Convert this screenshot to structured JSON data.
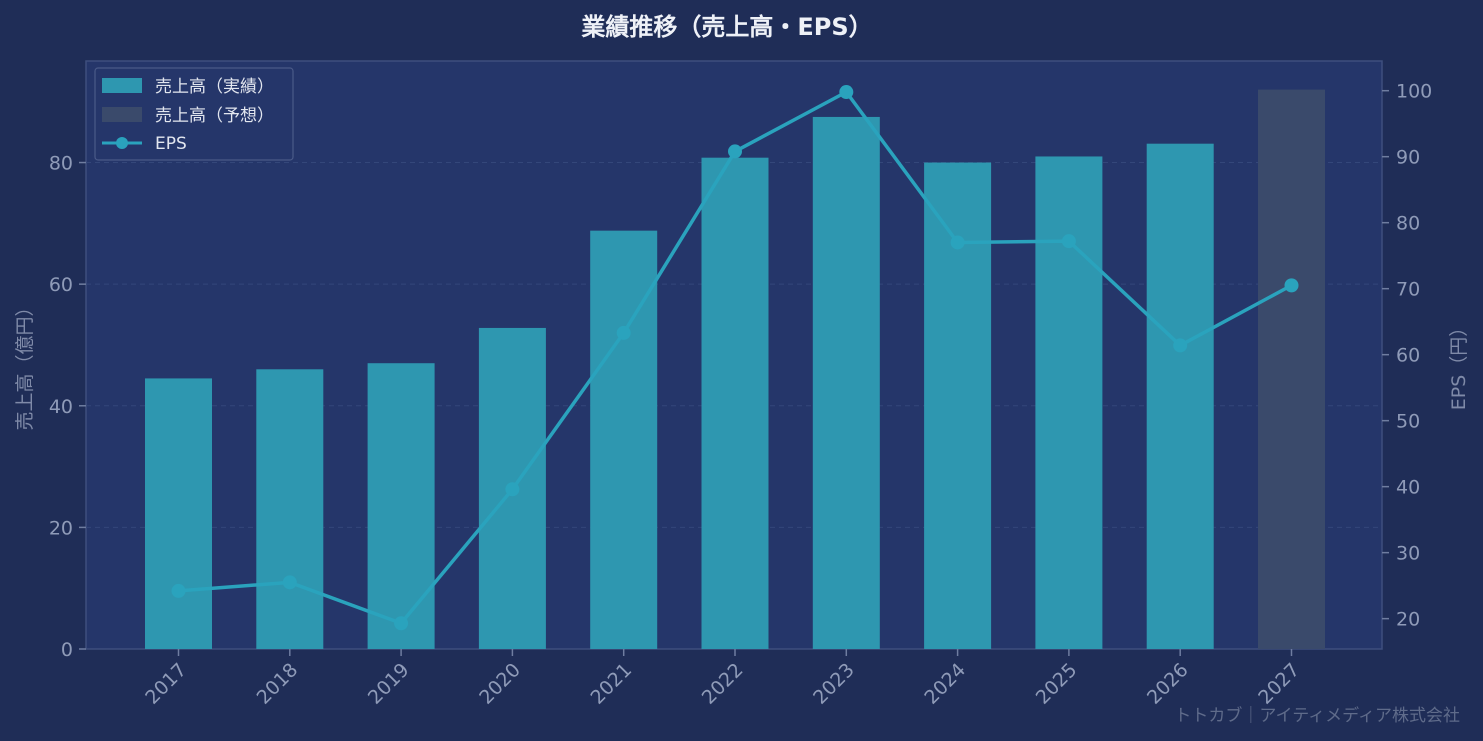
{
  "chart_data": {
    "type": "bar",
    "title": "業績推移（売上高・EPS）",
    "categories": [
      "2017",
      "2018",
      "2019",
      "2020",
      "2021",
      "2022",
      "2023",
      "2024",
      "2025",
      "2026",
      "2027"
    ],
    "series": [
      {
        "name": "売上高（実績）",
        "type": "bar",
        "axis": "left",
        "color": "#2e97b0",
        "values": [
          44.5,
          46.0,
          47.0,
          52.8,
          68.8,
          80.8,
          87.5,
          80.0,
          81.0,
          83.1,
          null
        ]
      },
      {
        "name": "売上高（予想）",
        "type": "bar",
        "axis": "left",
        "color": "#3a4a6b",
        "values": [
          null,
          null,
          null,
          null,
          null,
          null,
          null,
          null,
          null,
          null,
          92.0
        ]
      },
      {
        "name": "EPS",
        "type": "line",
        "axis": "right",
        "color": "#2aa3bd",
        "values": [
          24.2,
          25.5,
          19.3,
          39.6,
          63.3,
          90.8,
          99.8,
          77.0,
          77.2,
          61.4,
          70.5
        ]
      }
    ],
    "ylabel": "売上高（億円）",
    "y2label": "EPS（円）",
    "ylim": [
      0,
      96.7
    ],
    "y2lim": [
      15.4,
      104.5
    ],
    "yticks": [
      0,
      20,
      40,
      60,
      80
    ],
    "y2ticks": [
      20,
      30,
      40,
      50,
      60,
      70,
      80,
      90,
      100
    ],
    "grid": true,
    "legend_position": "top-left",
    "watermark": "トトカブ｜アイティメディア株式会社",
    "colors": {
      "background": "#1f2d57",
      "plot_background": "#25366a",
      "actual_bar": "#2e97b0",
      "forecast_bar": "#3a4a6b",
      "eps_line": "#2aa3bd"
    }
  }
}
